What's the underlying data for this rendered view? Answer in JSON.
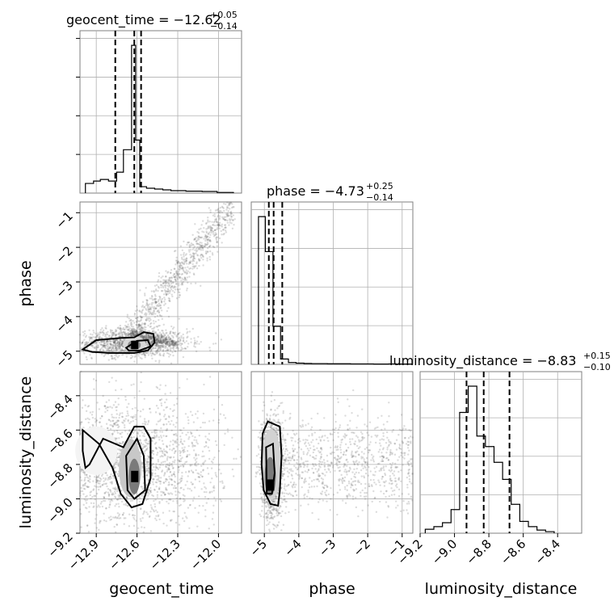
{
  "chart_data": {
    "type": "corner",
    "parameters": [
      "geocent_time",
      "phase",
      "luminosity_distance"
    ],
    "axis_labels": {
      "geocent_time": "geocent_time",
      "phase": "phase",
      "luminosity_distance": "luminosity_distance"
    },
    "titles": [
      {
        "param": "geocent_time",
        "main": "geocent_time = −12.62",
        "plus": "+0.05",
        "minus": "−0.14"
      },
      {
        "param": "phase",
        "main": "phase = −4.73",
        "plus": "+0.25",
        "minus": "−0.14"
      },
      {
        "param": "luminosity_distance",
        "main": "luminosity_distance = −8.83",
        "plus": "+0.15",
        "minus": "−0.10"
      }
    ],
    "ranges": {
      "geocent_time": [
        -13.02,
        -11.83
      ],
      "phase": [
        -5.38,
        -0.69
      ],
      "luminosity_distance": [
        -9.2,
        -8.26
      ]
    },
    "ticks": {
      "geocent_time": [
        {
          "v": -12.9,
          "label": "−12.9"
        },
        {
          "v": -12.6,
          "label": "−12.6"
        },
        {
          "v": -12.3,
          "label": "−12.3"
        },
        {
          "v": -12.0,
          "label": "−12.0"
        }
      ],
      "phase": [
        {
          "v": -5,
          "label": "−5"
        },
        {
          "v": -4,
          "label": "−4"
        },
        {
          "v": -3,
          "label": "−3"
        },
        {
          "v": -2,
          "label": "−2"
        },
        {
          "v": -1,
          "label": "−1"
        }
      ],
      "luminosity_distance_y": [
        {
          "v": -8.4,
          "label": "−8.4"
        },
        {
          "v": -8.6,
          "label": "−8.6"
        },
        {
          "v": -8.8,
          "label": "−8.8"
        },
        {
          "v": -9.0,
          "label": "−9.0"
        },
        {
          "v": -9.2,
          "label": "−9.2"
        }
      ],
      "luminosity_distance_x": [
        {
          "v": -9.2,
          "label": "−9.2"
        },
        {
          "v": -9.0,
          "label": "−9.0"
        },
        {
          "v": -8.8,
          "label": "−8.8"
        },
        {
          "v": -8.6,
          "label": "−8.6"
        },
        {
          "v": -8.4,
          "label": "−8.4"
        }
      ]
    },
    "histograms": {
      "geocent_time": {
        "edges": [
          -12.98,
          -12.92,
          -12.87,
          -12.81,
          -12.75,
          -12.7,
          -12.64,
          -12.61,
          -12.58,
          -12.53,
          -12.47,
          -12.41,
          -12.35,
          -12.24,
          -12.12,
          -12.01,
          -11.89
        ],
        "counts": [
          0.06,
          0.075,
          0.085,
          0.075,
          0.13,
          0.27,
          0.92,
          0.33,
          0.04,
          0.03,
          0.025,
          0.02,
          0.015,
          0.012,
          0.01,
          0.004
        ],
        "quantiles": [
          -12.76,
          -12.62,
          -12.57
        ]
      },
      "phase": {
        "edges": [
          -5.17,
          -4.97,
          -4.75,
          -4.53,
          -4.3,
          -4.08,
          -3.85,
          -3.63,
          -3.4,
          -3.17,
          -2.95,
          -2.73,
          -2.5,
          -2.28,
          -2.06,
          -1.83,
          -1.61,
          -1.39,
          -1.17,
          -0.94,
          -0.72
        ],
        "counts": [
          0.97,
          0.74,
          0.25,
          0.035,
          0.012,
          0.008,
          0.006,
          0.005,
          0.005,
          0.004,
          0.004,
          0.004,
          0.003,
          0.003,
          0.003,
          0.002,
          0.002,
          0.003,
          0.002,
          0.002
        ],
        "quantiles": [
          -4.87,
          -4.73,
          -4.48
        ]
      },
      "luminosity_distance": {
        "edges": [
          -9.17,
          -9.12,
          -9.07,
          -9.02,
          -8.97,
          -8.92,
          -8.87,
          -8.82,
          -8.77,
          -8.72,
          -8.67,
          -8.62,
          -8.57,
          -8.52,
          -8.47,
          -8.42
        ],
        "counts": [
          0.015,
          0.025,
          0.04,
          0.09,
          0.46,
          0.56,
          0.37,
          0.33,
          0.27,
          0.205,
          0.11,
          0.045,
          0.025,
          0.012,
          0.006
        ],
        "quantiles": [
          -8.93,
          -8.83,
          -8.68
        ]
      }
    },
    "grid": true,
    "legend": "none"
  }
}
